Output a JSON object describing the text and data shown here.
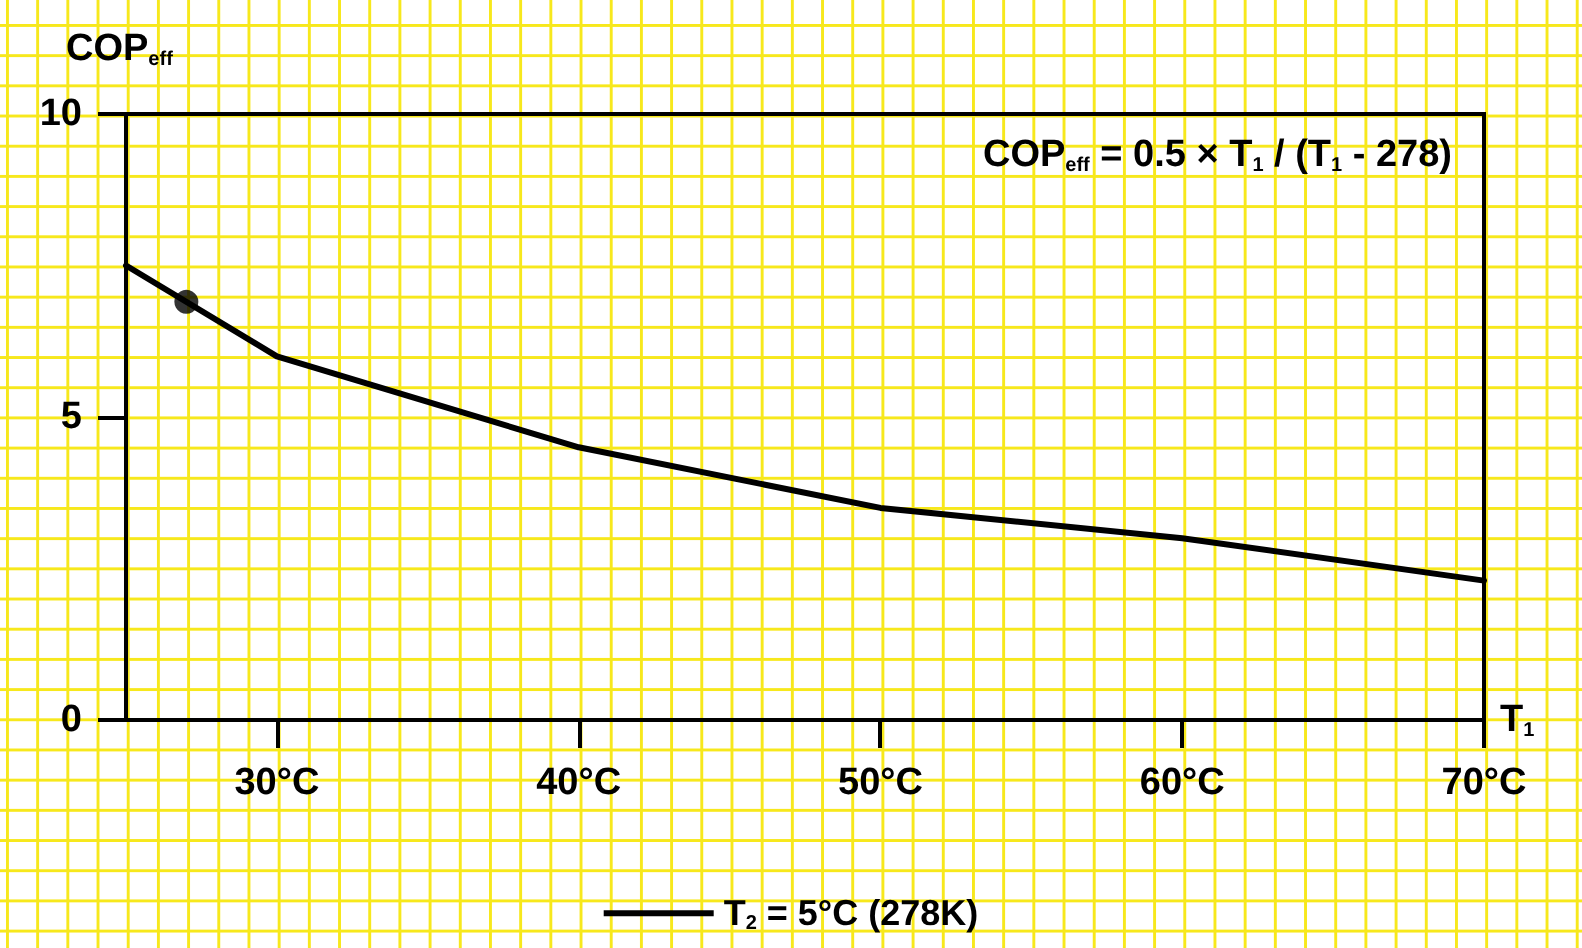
{
  "chart_data": {
    "type": "line",
    "xlabel": "T$_{1}$",
    "ylabel": "COP$_{eff}$",
    "annotations": [
      "COP$_{eff}$ = 0.5 × T$_{1}$ / (T$_{1}$ - 278)"
    ],
    "series": [
      {
        "name": "T$_{2}$ = 5°C (278K)",
        "color": "#000000",
        "x": [
          25,
          30,
          40,
          50,
          60,
          70
        ],
        "values": [
          7.5,
          6.0,
          4.5,
          3.5,
          3.0,
          2.3
        ],
        "marker": "none"
      },
      {
        "type": "scatter",
        "color": "#000000",
        "x": [
          27
        ],
        "values": [
          6.9
        ],
        "marker": "circle"
      }
    ],
    "xlim": [
      25,
      70
    ],
    "xticks": [
      {
        "value": 30,
        "label": "30°C"
      },
      {
        "value": 40,
        "label": "40°C"
      },
      {
        "value": 50,
        "label": "50°C"
      },
      {
        "value": 60,
        "label": "60°C"
      },
      {
        "value": 70,
        "label": "70°C"
      }
    ],
    "ylim": [
      0,
      10
    ],
    "yticks": [
      0,
      5,
      10
    ],
    "grid": false,
    "legend": "bottom",
    "line_style": "solid"
  }
}
